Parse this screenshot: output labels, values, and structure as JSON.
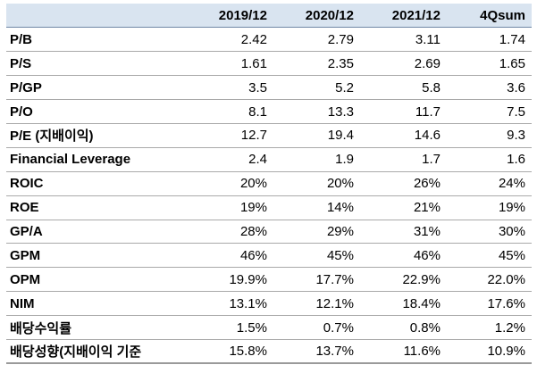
{
  "table": {
    "header": [
      "",
      "2019/12",
      "2020/12",
      "2021/12",
      "4Qsum"
    ],
    "rows": [
      {
        "label": "P/B",
        "values": [
          "2.42",
          "2.79",
          "3.11",
          "1.74"
        ]
      },
      {
        "label": "P/S",
        "values": [
          "1.61",
          "2.35",
          "2.69",
          "1.65"
        ]
      },
      {
        "label": "P/GP",
        "values": [
          "3.5",
          "5.2",
          "5.8",
          "3.6"
        ]
      },
      {
        "label": "P/O",
        "values": [
          "8.1",
          "13.3",
          "11.7",
          "7.5"
        ]
      },
      {
        "label": "P/E (지배이익)",
        "values": [
          "12.7",
          "19.4",
          "14.6",
          "9.3"
        ]
      },
      {
        "label": "Financial Leverage",
        "values": [
          "2.4",
          "1.9",
          "1.7",
          "1.6"
        ]
      },
      {
        "label": "ROIC",
        "values": [
          "20%",
          "20%",
          "26%",
          "24%"
        ]
      },
      {
        "label": "ROE",
        "values": [
          "19%",
          "14%",
          "21%",
          "19%"
        ]
      },
      {
        "label": "GP/A",
        "values": [
          "28%",
          "29%",
          "31%",
          "30%"
        ]
      },
      {
        "label": "GPM",
        "values": [
          "46%",
          "45%",
          "46%",
          "45%"
        ]
      },
      {
        "label": "OPM",
        "values": [
          "19.9%",
          "17.7%",
          "22.9%",
          "22.0%"
        ]
      },
      {
        "label": "NIM",
        "values": [
          "13.1%",
          "12.1%",
          "18.4%",
          "17.6%"
        ]
      },
      {
        "label": "배당수익률",
        "values": [
          "1.5%",
          "0.7%",
          "0.8%",
          "1.2%"
        ]
      },
      {
        "label": "배당성향(지배이익 기준",
        "values": [
          "15.8%",
          "13.7%",
          "11.6%",
          "10.9%"
        ]
      }
    ]
  },
  "colors": {
    "header_bg": "#d9e4f0",
    "row_border": "#a9a9a9"
  }
}
